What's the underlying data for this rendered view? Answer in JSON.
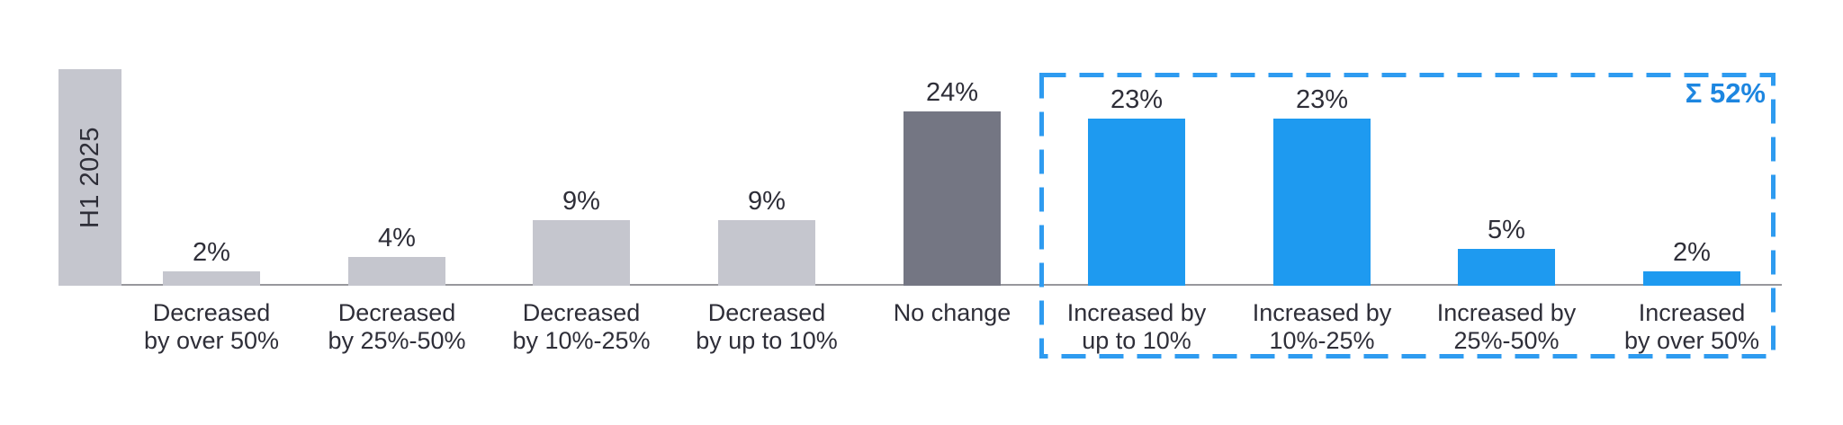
{
  "chart_data": {
    "type": "bar",
    "row_label": "H1 2025",
    "unit": "%",
    "categories": [
      {
        "label_lines": [
          "Decreased",
          "by over 50%"
        ],
        "value": 2,
        "group": "decrease"
      },
      {
        "label_lines": [
          "Decreased",
          "by 25%-50%"
        ],
        "value": 4,
        "group": "decrease"
      },
      {
        "label_lines": [
          "Decreased",
          "by 10%-25%"
        ],
        "value": 9,
        "group": "decrease"
      },
      {
        "label_lines": [
          "Decreased",
          "by up to 10%"
        ],
        "value": 9,
        "group": "decrease"
      },
      {
        "label_lines": [
          "No change"
        ],
        "value": 24,
        "group": "no_change"
      },
      {
        "label_lines": [
          "Increased by",
          "up to 10%"
        ],
        "value": 23,
        "group": "increase"
      },
      {
        "label_lines": [
          "Increased by",
          "10%-25%"
        ],
        "value": 23,
        "group": "increase"
      },
      {
        "label_lines": [
          "Increased by",
          "25%-50%"
        ],
        "value": 5,
        "group": "increase"
      },
      {
        "label_lines": [
          "Increased",
          "by over 50%"
        ],
        "value": 2,
        "group": "increase"
      }
    ],
    "colors": {
      "decrease": "#c5c6ce",
      "no_change": "#747683",
      "increase": "#1e9af0",
      "label_text": "#2e2e38",
      "axis_line": "#97979c"
    },
    "highlight_box": {
      "color": "#2e9bf0",
      "covers_groups": "increase"
    },
    "sum_badge": {
      "text": "Σ 52%",
      "color": "#1d86e0"
    },
    "axis": {
      "x_baseline": true,
      "y_axis_visible": false,
      "gridlines": false,
      "value_labels": "above bars"
    }
  }
}
